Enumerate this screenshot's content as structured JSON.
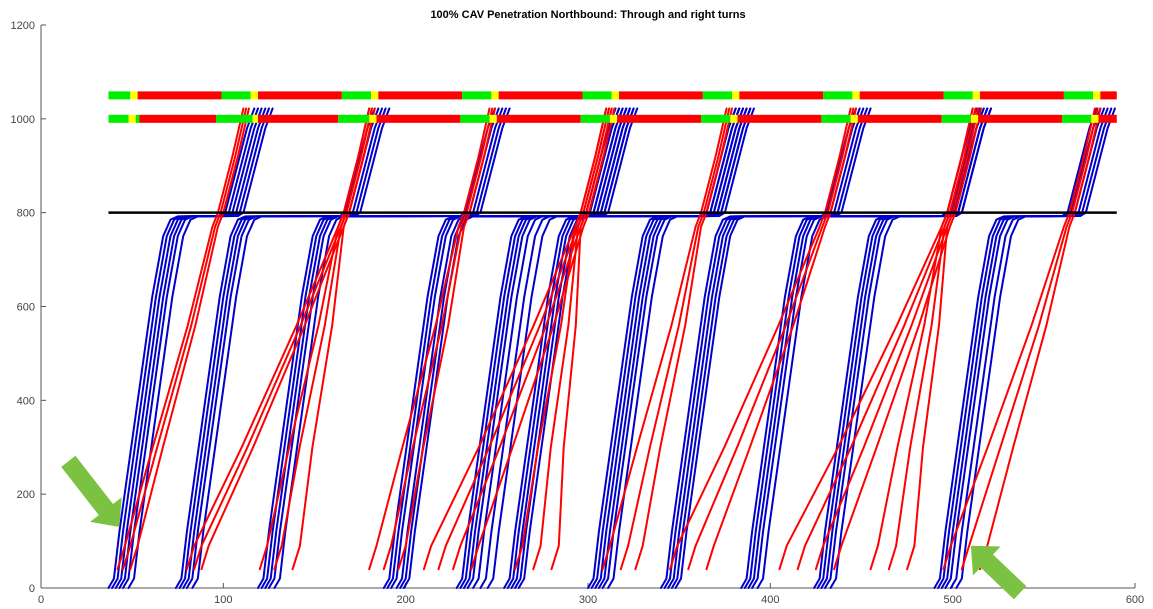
{
  "chart_data": {
    "type": "line",
    "title": "100% CAV Penetration Northbound: Through and right turns",
    "xlabel": "",
    "ylabel": "",
    "xlim": [
      0,
      600
    ],
    "ylim": [
      0,
      1200
    ],
    "xticks": [
      0,
      100,
      200,
      300,
      400,
      500,
      600
    ],
    "yticks": [
      0,
      200,
      400,
      600,
      800,
      1000,
      1200
    ],
    "grid": false,
    "colors": {
      "through": "#0000cc",
      "right": "#ff0000",
      "green": "#00ee00",
      "yellow": "#ffff00",
      "red": "#ff0000",
      "stopline": "#000000",
      "arrow": "#7cc242"
    },
    "stop_line": {
      "y": 800,
      "x_start": 37,
      "x_end": 590
    },
    "signals": [
      {
        "y": 1050,
        "phases": [
          {
            "x0": 37,
            "x1": 49,
            "color": "green"
          },
          {
            "x0": 49,
            "x1": 53,
            "color": "yellow"
          },
          {
            "x0": 53,
            "x1": 99,
            "color": "red"
          },
          {
            "x0": 99,
            "x1": 115,
            "color": "green"
          },
          {
            "x0": 115,
            "x1": 119,
            "color": "yellow"
          },
          {
            "x0": 119,
            "x1": 165,
            "color": "red"
          },
          {
            "x0": 165,
            "x1": 181,
            "color": "green"
          },
          {
            "x0": 181,
            "x1": 185,
            "color": "yellow"
          },
          {
            "x0": 185,
            "x1": 231,
            "color": "red"
          },
          {
            "x0": 231,
            "x1": 247,
            "color": "green"
          },
          {
            "x0": 247,
            "x1": 251,
            "color": "yellow"
          },
          {
            "x0": 251,
            "x1": 297,
            "color": "red"
          },
          {
            "x0": 297,
            "x1": 313,
            "color": "green"
          },
          {
            "x0": 313,
            "x1": 317,
            "color": "yellow"
          },
          {
            "x0": 317,
            "x1": 363,
            "color": "red"
          },
          {
            "x0": 363,
            "x1": 379,
            "color": "green"
          },
          {
            "x0": 379,
            "x1": 383,
            "color": "yellow"
          },
          {
            "x0": 383,
            "x1": 429,
            "color": "red"
          },
          {
            "x0": 429,
            "x1": 445,
            "color": "green"
          },
          {
            "x0": 445,
            "x1": 449,
            "color": "yellow"
          },
          {
            "x0": 449,
            "x1": 495,
            "color": "red"
          },
          {
            "x0": 495,
            "x1": 511,
            "color": "green"
          },
          {
            "x0": 511,
            "x1": 515,
            "color": "yellow"
          },
          {
            "x0": 515,
            "x1": 561,
            "color": "red"
          },
          {
            "x0": 561,
            "x1": 577,
            "color": "green"
          },
          {
            "x0": 577,
            "x1": 581,
            "color": "yellow"
          },
          {
            "x0": 581,
            "x1": 590,
            "color": "red"
          }
        ]
      },
      {
        "y": 1000,
        "phases": [
          {
            "x0": 37,
            "x1": 48,
            "color": "green"
          },
          {
            "x0": 48,
            "x1": 52,
            "color": "yellow"
          },
          {
            "x0": 52,
            "x1": 54,
            "color": "green"
          },
          {
            "x0": 54,
            "x1": 96,
            "color": "red"
          },
          {
            "x0": 96,
            "x1": 116,
            "color": "green"
          },
          {
            "x0": 116,
            "x1": 119,
            "color": "yellow"
          },
          {
            "x0": 119,
            "x1": 163,
            "color": "red"
          },
          {
            "x0": 163,
            "x1": 180,
            "color": "green"
          },
          {
            "x0": 180,
            "x1": 184,
            "color": "yellow"
          },
          {
            "x0": 184,
            "x1": 230,
            "color": "red"
          },
          {
            "x0": 230,
            "x1": 246,
            "color": "green"
          },
          {
            "x0": 246,
            "x1": 250,
            "color": "yellow"
          },
          {
            "x0": 250,
            "x1": 296,
            "color": "red"
          },
          {
            "x0": 296,
            "x1": 312,
            "color": "green"
          },
          {
            "x0": 312,
            "x1": 316,
            "color": "yellow"
          },
          {
            "x0": 316,
            "x1": 362,
            "color": "red"
          },
          {
            "x0": 362,
            "x1": 378,
            "color": "green"
          },
          {
            "x0": 378,
            "x1": 382,
            "color": "yellow"
          },
          {
            "x0": 382,
            "x1": 428,
            "color": "red"
          },
          {
            "x0": 428,
            "x1": 444,
            "color": "green"
          },
          {
            "x0": 444,
            "x1": 448,
            "color": "yellow"
          },
          {
            "x0": 448,
            "x1": 494,
            "color": "red"
          },
          {
            "x0": 494,
            "x1": 510,
            "color": "green"
          },
          {
            "x0": 510,
            "x1": 514,
            "color": "yellow"
          },
          {
            "x0": 514,
            "x1": 560,
            "color": "red"
          },
          {
            "x0": 560,
            "x1": 576,
            "color": "green"
          },
          {
            "x0": 576,
            "x1": 580,
            "color": "yellow"
          },
          {
            "x0": 580,
            "x1": 590,
            "color": "red"
          }
        ]
      }
    ],
    "through_groups": [
      {
        "starts": [
          37,
          39,
          41,
          43,
          45,
          48
        ],
        "queue_end": 101
      },
      {
        "starts": [
          74,
          76,
          78,
          80,
          83
        ],
        "queue_end": 167
      },
      {
        "starts": [
          119,
          121,
          123,
          125,
          128
        ],
        "queue_end": 233
      },
      {
        "starts": [
          188,
          190,
          192,
          195,
          197,
          199
        ],
        "queue_end": 299
      },
      {
        "starts": [
          228,
          230,
          232,
          234,
          237,
          241,
          245
        ],
        "queue_end": 299
      },
      {
        "starts": [
          254,
          256,
          258,
          260,
          262
        ],
        "queue_end": 365
      },
      {
        "starts": [
          300,
          302,
          304,
          306,
          308,
          311
        ],
        "queue_end": 365
      },
      {
        "starts": [
          340,
          342,
          344,
          346,
          348
        ],
        "queue_end": 431
      },
      {
        "starts": [
          384,
          386,
          388,
          390,
          393
        ],
        "queue_end": 497
      },
      {
        "starts": [
          424,
          426,
          428,
          430,
          433
        ],
        "queue_end": 497
      },
      {
        "starts": [
          490,
          492,
          494,
          496,
          499,
          502
        ],
        "queue_end": 563
      }
    ],
    "right_groups": [
      {
        "starts": [
          42,
          45,
          49
        ],
        "cross": 97
      },
      {
        "starts": [
          80,
          84,
          88
        ],
        "cross": 166
      },
      {
        "starts": [
          120,
          128,
          138
        ],
        "cross": 166
      },
      {
        "starts": [
          180,
          188,
          196
        ],
        "cross": 232
      },
      {
        "starts": [
          210,
          218,
          226,
          236
        ],
        "cross": 296
      },
      {
        "starts": [
          260,
          270,
          280
        ],
        "cross": 296
      },
      {
        "starts": [
          308,
          318,
          326
        ],
        "cross": 362
      },
      {
        "starts": [
          345,
          355,
          365
        ],
        "cross": 430
      },
      {
        "starts": [
          405,
          415,
          425,
          435
        ],
        "cross": 497
      },
      {
        "starts": [
          455,
          465,
          475
        ],
        "cross": 497
      },
      {
        "starts": [
          495,
          505,
          515
        ],
        "cross": 564
      }
    ],
    "arrows": [
      {
        "from": [
          15,
          270
        ],
        "to": [
          43,
          130
        ]
      },
      {
        "from": [
          537,
          -10
        ],
        "to": [
          510,
          90
        ]
      }
    ]
  }
}
